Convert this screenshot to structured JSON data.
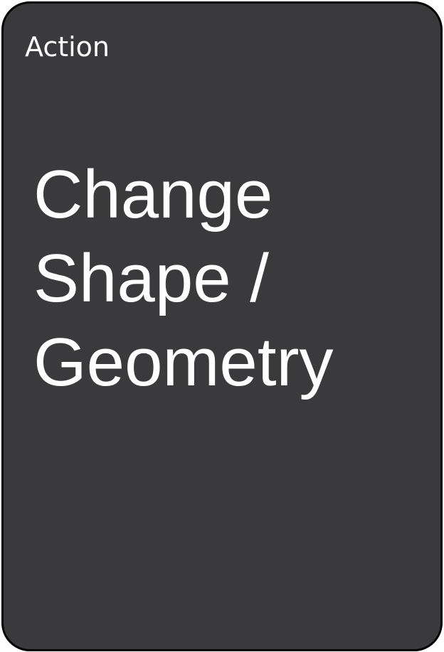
{
  "card": {
    "category": "Action",
    "title_lines": [
      "Change",
      "Shape /",
      "Geometry"
    ]
  },
  "colors": {
    "card_background": "#3a3a3c",
    "card_border": "#000000",
    "text": "#ffffff"
  }
}
